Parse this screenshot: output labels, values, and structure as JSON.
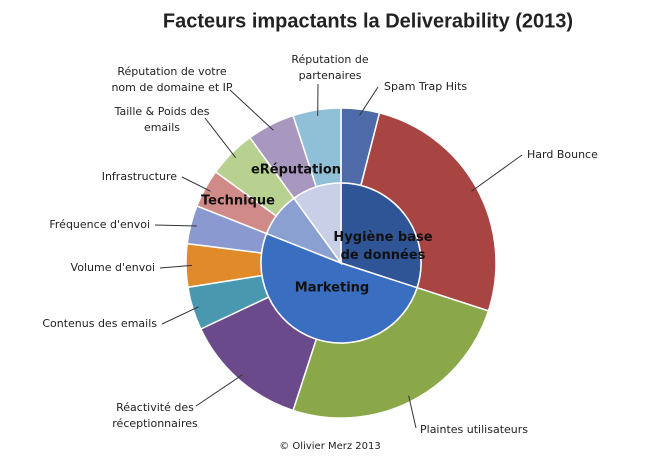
{
  "chart_data": {
    "type": "sunburst",
    "title": "Facteurs impactants la Deliverability (2013)",
    "categories": [
      "Spam Trap Hits",
      "Hard Bounce",
      "Plaintes utilisateurs",
      "Réactivité des\nréceptionnaires",
      "Contenus des emails",
      "Volume d'envoi",
      "Fréquence d'envoi",
      "Infrastructure",
      "Taille & Poids des\nemails",
      "Réputation de votre\nnom de domaine et IP",
      "Réputation de\npartenaires"
    ],
    "values": [
      4,
      26,
      25,
      13,
      4.5,
      4.5,
      4,
      4,
      5,
      5,
      5
    ],
    "colors": [
      "#4f6aa8",
      "#a84442",
      "#8aa84a",
      "#6a4a8a",
      "#4a98b0",
      "#e08a2a",
      "#8a9ad0",
      "#d08a88",
      "#b8d090",
      "#a898c0",
      "#90c0d8"
    ],
    "inner": {
      "categories": [
        "Hygiène base\nde données",
        "Marketing",
        "Technique",
        "eRéputation"
      ],
      "values": [
        30,
        51,
        9,
        10
      ],
      "colors": [
        "#2f5597",
        "#3a6ec0",
        "#8aa0d0",
        "#c8cfe6"
      ]
    },
    "credit": "© Olivier Merz  2013"
  }
}
